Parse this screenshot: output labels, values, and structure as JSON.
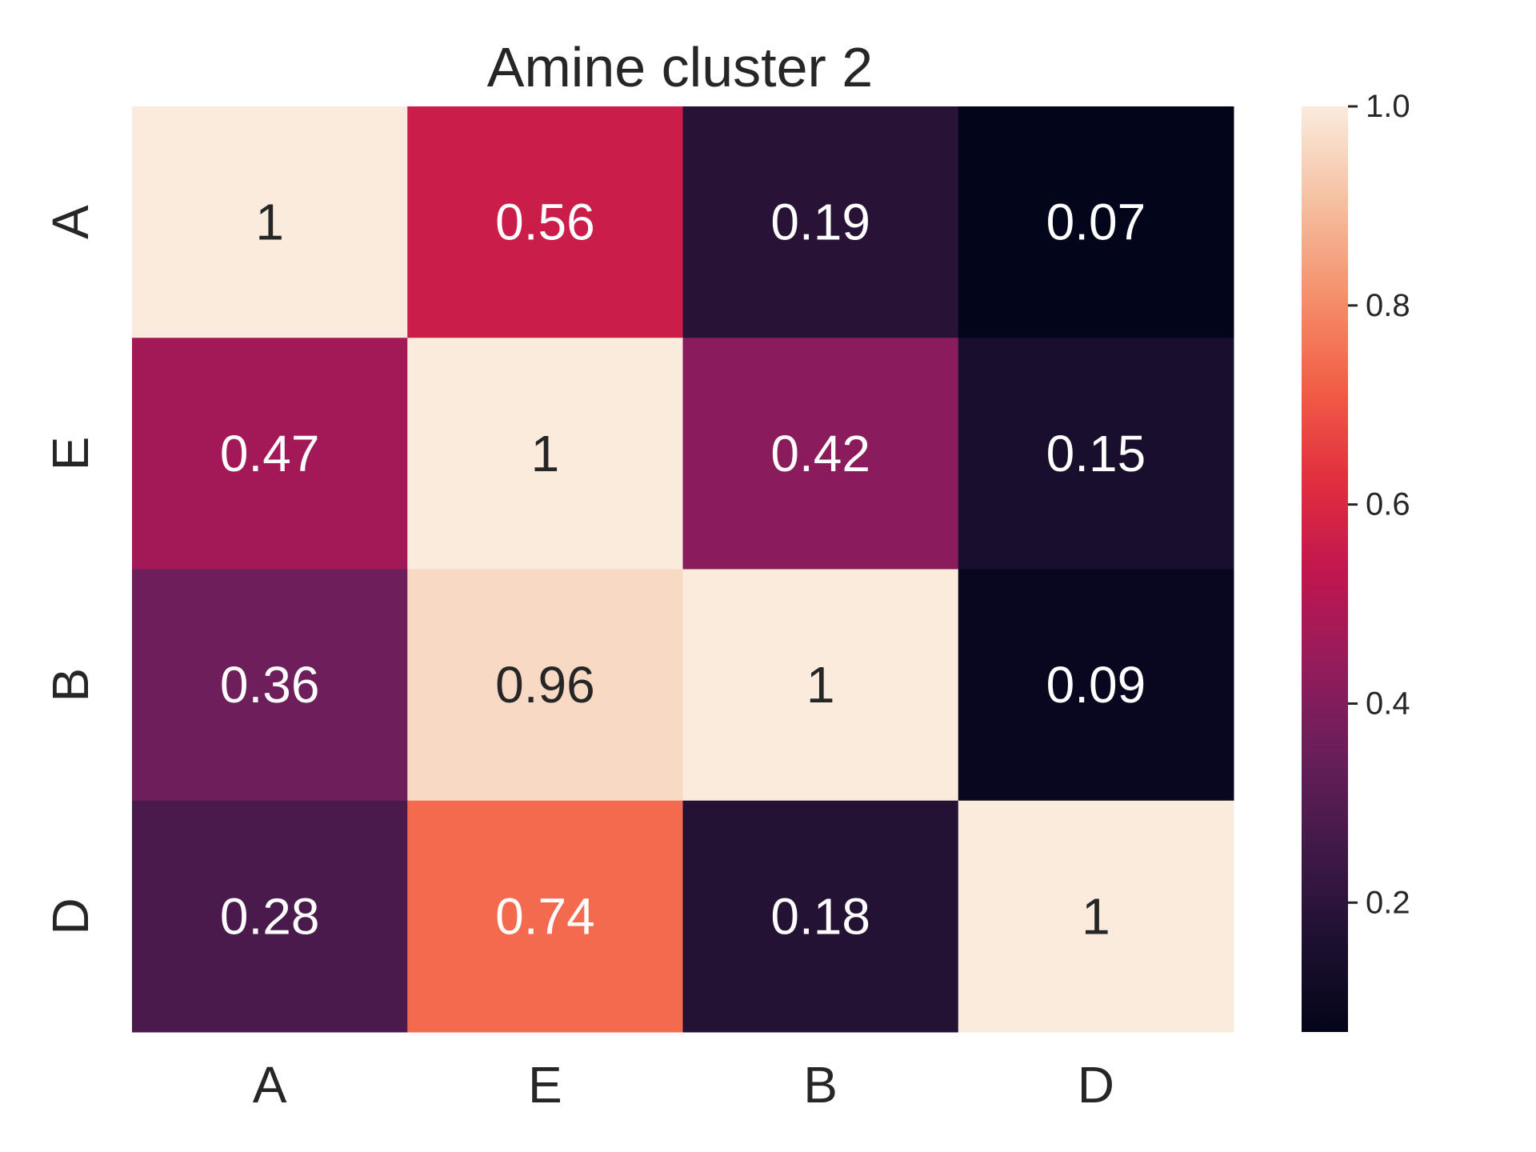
{
  "chart_data": {
    "type": "heatmap",
    "title": "Amine cluster 2",
    "xlabel": "",
    "ylabel": "",
    "x_categories": [
      "A",
      "E",
      "B",
      "D"
    ],
    "y_categories": [
      "A",
      "E",
      "B",
      "D"
    ],
    "values": [
      [
        1,
        0.56,
        0.19,
        0.07
      ],
      [
        0.47,
        1,
        0.42,
        0.15
      ],
      [
        0.36,
        0.96,
        1,
        0.09
      ],
      [
        0.28,
        0.74,
        0.18,
        1
      ]
    ],
    "annotations": [
      [
        "1",
        "0.56",
        "0.19",
        "0.07"
      ],
      [
        "0.47",
        "1",
        "0.42",
        "0.15"
      ],
      [
        "0.36",
        "0.96",
        "1",
        "0.09"
      ],
      [
        "0.28",
        "0.74",
        "0.18",
        "1"
      ]
    ],
    "colormap": "rocket",
    "colorbar": {
      "range": [
        0.07,
        1.0
      ],
      "ticks": [
        0.2,
        0.4,
        0.6,
        0.8,
        1.0
      ],
      "tick_labels": [
        "0.2",
        "0.4",
        "0.6",
        "0.8",
        "1.0"
      ]
    },
    "grid": false,
    "legend": "colorbar-right"
  }
}
